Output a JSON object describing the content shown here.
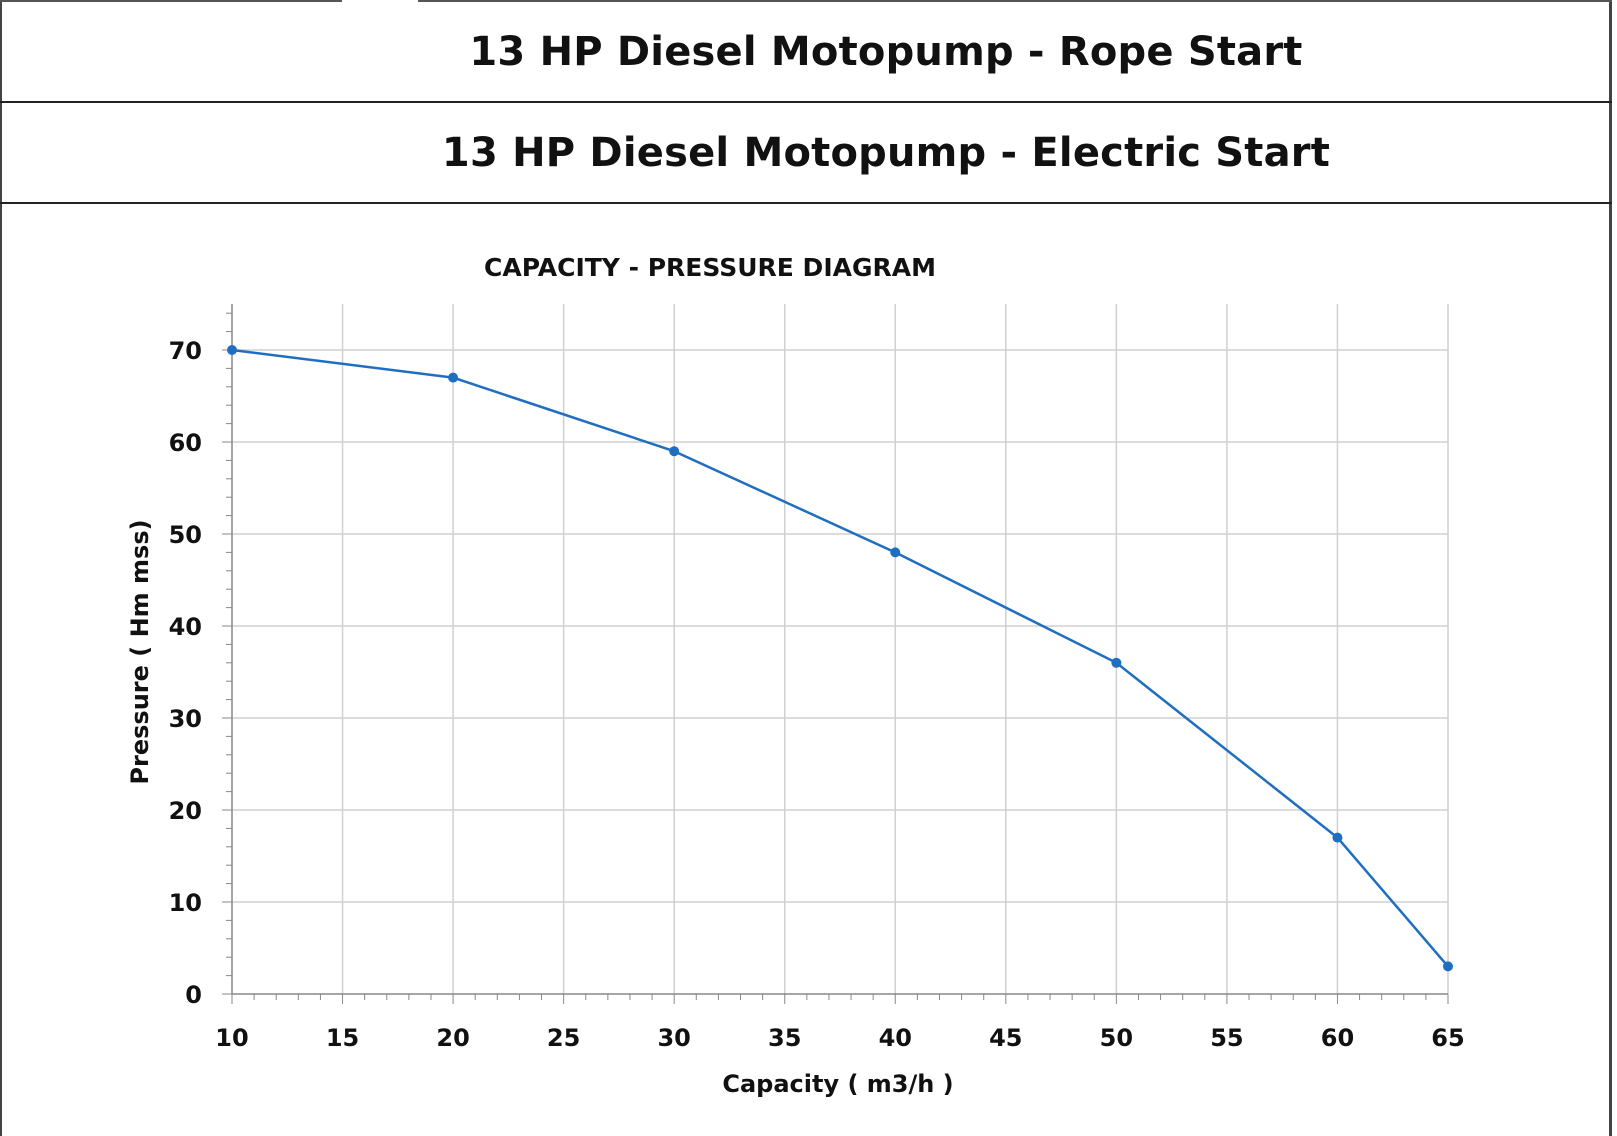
{
  "header": {
    "row1_title": "13 HP Diesel  Motopump - Rope Start",
    "row2_title": "13 HP Diesel Motopump - Electric Start"
  },
  "colors": {
    "series": "#1f6fc1",
    "grid": "#d0d0d0",
    "axis": "#888888"
  },
  "chart_data": {
    "type": "line",
    "title": "CAPACITY - PRESSURE DIAGRAM",
    "xlabel": "Capacity ( m3/h )",
    "ylabel": "Pressure ( Hm mss)",
    "xlim": [
      10,
      65
    ],
    "ylim": [
      0,
      75
    ],
    "xticks": [
      10,
      15,
      20,
      25,
      30,
      35,
      40,
      45,
      50,
      55,
      60,
      65
    ],
    "yticks": [
      0,
      10,
      20,
      30,
      40,
      50,
      60,
      70
    ],
    "grid": true,
    "series": [
      {
        "x": [
          10,
          20,
          30,
          40,
          50,
          60,
          65
        ],
        "y": [
          70,
          67,
          59,
          48,
          36,
          17,
          3
        ]
      }
    ]
  }
}
